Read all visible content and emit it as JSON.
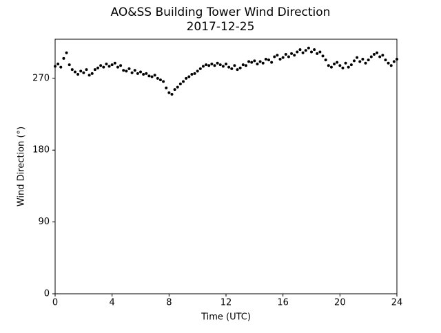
{
  "chart_data": {
    "type": "scatter",
    "title": "AO&SS Building Tower Wind Direction",
    "subtitle": "2017-12-25",
    "x_label": "Time (UTC)",
    "y_label": "Wind Direction (°)",
    "color": "#000000",
    "xlim": [
      0,
      24
    ],
    "xticks": [
      0,
      4,
      8,
      12,
      16,
      20,
      24
    ],
    "ylim": [
      0,
      319
    ],
    "yticks": [
      0,
      90,
      180,
      270
    ],
    "grid": false,
    "x": [
      0,
      0.2,
      0.4,
      0.6,
      0.8,
      1,
      1.2,
      1.4,
      1.6,
      1.8,
      2,
      2.2,
      2.4,
      2.6,
      2.8,
      3,
      3.2,
      3.4,
      3.6,
      3.8,
      4,
      4.2,
      4.4,
      4.6,
      4.8,
      5,
      5.2,
      5.4,
      5.6,
      5.8,
      6,
      6.2,
      6.4,
      6.6,
      6.8,
      7,
      7.2,
      7.4,
      7.6,
      7.8,
      8,
      8.2,
      8.4,
      8.6,
      8.8,
      9,
      9.2,
      9.4,
      9.6,
      9.8,
      10,
      10.2,
      10.4,
      10.6,
      10.8,
      11,
      11.2,
      11.4,
      11.6,
      11.8,
      12,
      12.2,
      12.4,
      12.6,
      12.8,
      13,
      13.2,
      13.4,
      13.6,
      13.8,
      14,
      14.2,
      14.4,
      14.6,
      14.8,
      15,
      15.2,
      15.4,
      15.6,
      15.8,
      16,
      16.2,
      16.4,
      16.6,
      16.8,
      17,
      17.2,
      17.4,
      17.6,
      17.8,
      18,
      18.2,
      18.4,
      18.6,
      18.8,
      19,
      19.2,
      19.4,
      19.6,
      19.8,
      20,
      20.2,
      20.4,
      20.6,
      20.8,
      21,
      21.2,
      21.4,
      21.6,
      21.8,
      22,
      22.2,
      22.4,
      22.6,
      22.8,
      23,
      23.2,
      23.4,
      23.6,
      23.8,
      24
    ],
    "values": [
      285,
      288,
      284,
      295,
      302,
      287,
      281,
      278,
      275,
      279,
      277,
      281,
      274,
      276,
      281,
      283,
      286,
      284,
      288,
      285,
      287,
      289,
      284,
      286,
      280,
      279,
      282,
      277,
      280,
      276,
      278,
      275,
      276,
      273,
      272,
      274,
      270,
      268,
      266,
      258,
      252,
      250,
      256,
      259,
      263,
      266,
      270,
      272,
      275,
      276,
      279,
      282,
      285,
      287,
      286,
      288,
      286,
      289,
      287,
      285,
      288,
      284,
      282,
      286,
      281,
      283,
      287,
      286,
      291,
      290,
      292,
      288,
      291,
      289,
      294,
      293,
      290,
      297,
      299,
      294,
      296,
      300,
      297,
      301,
      299,
      303,
      306,
      302,
      305,
      308,
      303,
      306,
      301,
      303,
      298,
      293,
      286,
      284,
      288,
      290,
      286,
      283,
      289,
      284,
      287,
      292,
      296,
      291,
      294,
      289,
      293,
      297,
      300,
      302,
      297,
      299,
      293,
      289,
      286,
      291,
      294
    ]
  }
}
